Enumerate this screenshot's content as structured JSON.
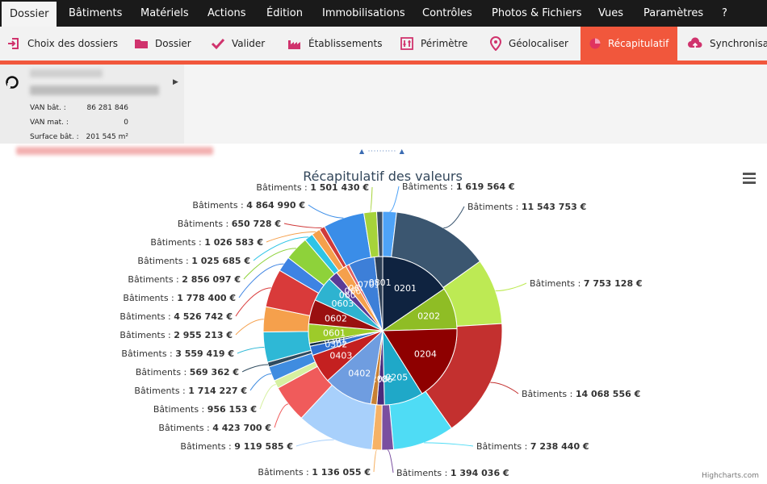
{
  "menu": {
    "items": [
      "Dossier",
      "Bâtiments",
      "Matériels",
      "Actions",
      "Édition",
      "Immobilisations",
      "Contrôles",
      "Photos & Fichiers",
      "Vues",
      "Paramètres",
      "?"
    ]
  },
  "toolbar": {
    "items": [
      {
        "label": "Choix des dossiers",
        "icon": "import-icon"
      },
      {
        "label": "Dossier",
        "icon": "folder-icon"
      },
      {
        "label": "Valider",
        "icon": "check-icon"
      },
      {
        "label": "Établissements",
        "icon": "factory-icon"
      },
      {
        "label": "Périmètre",
        "icon": "sliders-icon"
      },
      {
        "label": "Géolocaliser",
        "icon": "map-pin-icon"
      },
      {
        "label": "Récapitulatif",
        "icon": "pie-chart-icon"
      },
      {
        "label": "Synchronisat",
        "icon": "cloud-upload-icon"
      }
    ],
    "active_index": 6
  },
  "colors": {
    "accent": "#f1573c",
    "menubar": "#1a1a1a"
  },
  "info": {
    "rows": [
      {
        "label": "VAN bât. :",
        "value": "86 281 846"
      },
      {
        "label": "VAN mat. :",
        "value": "0"
      },
      {
        "label": "Surface bât. :",
        "value": "201 545 m²"
      }
    ]
  },
  "chart": {
    "title": "Récapitulatif des valeurs",
    "credits": "Highcharts.com"
  },
  "chart_data": {
    "type": "pie",
    "title": "Récapitulatif des valeurs",
    "outer_series": {
      "label_prefix": "Bâtiments : ",
      "slices": [
        {
          "value": "1 619 564 €",
          "amount": 1619564,
          "color": "#4ea3f7"
        },
        {
          "value": "11 543 753 €",
          "amount": 11543753,
          "color": "#3b5670"
        },
        {
          "value": "7 753 128 €",
          "amount": 7753128,
          "color": "#bdea54"
        },
        {
          "value": "14 068 556 €",
          "amount": 14068556,
          "color": "#c3302f"
        },
        {
          "value": "7 238 440 €",
          "amount": 7238440,
          "color": "#4fdcf5"
        },
        {
          "value": "1 394 036 €",
          "amount": 1394036,
          "color": "#7a4fa0"
        },
        {
          "value": "1 136 055 €",
          "amount": 1136055,
          "color": "#f6b266"
        },
        {
          "value": "9 119 585 €",
          "amount": 9119585,
          "color": "#a8d0fb"
        },
        {
          "value": "4 423 700 €",
          "amount": 4423700,
          "color": "#f05b5b"
        },
        {
          "value": "956 153 €",
          "amount": 956153,
          "color": "#d6f0a0"
        },
        {
          "value": "1 714 227 €",
          "amount": 1714227,
          "color": "#3f8ce0"
        },
        {
          "value": "569 362 €",
          "amount": 569362,
          "color": "#2e4a5e"
        },
        {
          "value": "3 559 419 €",
          "amount": 3559419,
          "color": "#2eb8d6"
        },
        {
          "value": "2 955 213 €",
          "amount": 2955213,
          "color": "#f5a04c"
        },
        {
          "value": "4 526 742 €",
          "amount": 4526742,
          "color": "#d93a3a"
        },
        {
          "value": "1 778 400 €",
          "amount": 1778400,
          "color": "#3d83e3"
        },
        {
          "value": "2 856 097 €",
          "amount": 2856097,
          "color": "#8ed23a"
        },
        {
          "value": "1 025 685 €",
          "amount": 1025685,
          "color": "#2ec4e6"
        },
        {
          "value": "1 026 583 €",
          "amount": 1026583,
          "color": "#f5a04c"
        },
        {
          "value": "650 728 €",
          "amount": 650728,
          "color": "#d03a3a"
        },
        {
          "value": "4 864 990 €",
          "amount": 4864990,
          "color": "#3a8de8"
        },
        {
          "value": "1 501 430 €",
          "amount": 1501430,
          "color": "#a6d33a"
        },
        {
          "value": "",
          "amount": 700000,
          "color": "#3c4f66"
        }
      ]
    },
    "inner_series": {
      "slices": [
        {
          "code": "0201",
          "amount": 13163317,
          "color": "#0f2340"
        },
        {
          "code": "0202",
          "amount": 7753128,
          "color": "#8fbd25"
        },
        {
          "code": "0204",
          "amount": 14068556,
          "color": "#8e0000"
        },
        {
          "code": "0205",
          "amount": 7238440,
          "color": "#1fa8c8"
        },
        {
          "code": "0206",
          "amount": 1394036,
          "color": "#4a2b7c"
        },
        {
          "code": "0208",
          "amount": 1136055,
          "color": "#c88033"
        },
        {
          "code": "0402",
          "amount": 9119585,
          "color": "#6f9de0"
        },
        {
          "code": "0403",
          "amount": 5379853,
          "color": "#c42020"
        },
        {
          "code": "0302",
          "amount": 1714227,
          "color": "#2f6fd0"
        },
        {
          "code": "0301",
          "amount": 569362,
          "color": "#132d45"
        },
        {
          "code": "0601",
          "amount": 3559419,
          "color": "#9dcb2a"
        },
        {
          "code": "0602",
          "amount": 4526742,
          "color": "#9a1010"
        },
        {
          "code": "0603",
          "amount": 4634497,
          "color": "#2eb3d0"
        },
        {
          "code": "0604",
          "amount": 1778400,
          "color": "#5a3a96"
        },
        {
          "code": "0605",
          "amount": 2052268,
          "color": "#f5a04c"
        },
        {
          "code": "0606",
          "amount": 650728,
          "color": "#e06060"
        },
        {
          "code": "0701",
          "amount": 4864990,
          "color": "#3d7fd8"
        },
        {
          "code": "0801",
          "amount": 1501430,
          "color": "#2c3e55"
        }
      ]
    }
  }
}
